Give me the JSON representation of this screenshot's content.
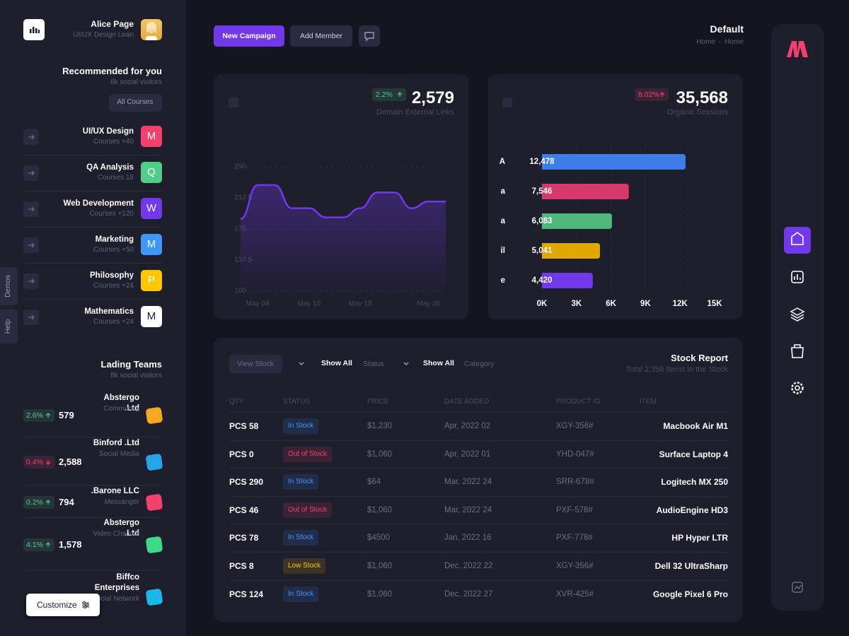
{
  "sidebar": {
    "name": "Alice Page",
    "role": "UI/UX Design Lean",
    "recommended_title": "Recommended for you",
    "recommended_subtitle": "8k social visitors",
    "all_courses": "All Courses",
    "courses": [
      {
        "title": "UI/UX Design",
        "meta": "Courses +40",
        "letter": "M",
        "color": "#f1416c"
      },
      {
        "title": "QA Analysis",
        "meta": "Courses 18",
        "letter": "Q",
        "color": "#50cd89"
      },
      {
        "title": "Web Development",
        "meta": "Courses +120",
        "letter": "W",
        "color": "#7239ea"
      },
      {
        "title": "Marketing",
        "meta": ".Courses +50",
        "letter": "M",
        "color": "#3e97ff"
      },
      {
        "title": "Philosophy",
        "meta": "Courses +24",
        "letter": "P",
        "color": "#ffc700"
      },
      {
        "title": "Mathematics",
        "meta": "Courses +24",
        "letter": "M",
        "color": "#ffffff"
      }
    ],
    "tabs": [
      "Demos",
      "Help"
    ],
    "teams_title": "Lading Teams",
    "teams_subtitle": "8k social visitors",
    "teams": [
      {
        "change": "2.6%",
        "value": "579",
        "name": "Abstergo .Ltd",
        "type": "Community",
        "color": "#50cd89",
        "icon": "#f6a821"
      },
      {
        "change": "0.4%",
        "value": "2,588",
        "name": "Binford .Ltd",
        "type": "Social Media",
        "color": "#f1416c",
        "icon": "#27a3e8"
      },
      {
        "change": "0.2%",
        "value": "794",
        "name": ".Barone LLC",
        "type": "Messanger",
        "color": "#50cd89",
        "icon": "#f1416c"
      },
      {
        "change": "4.1%",
        "value": "1,578",
        "name": "Abstergo .Ltd",
        "type": "Video Channel",
        "color": "#50cd89",
        "icon": "#3fd98a"
      },
      {
        "name": "Biffco Enterprises",
        "type": "Social Network",
        "icon": "#1ab7ea"
      }
    ],
    "customize": "Customize"
  },
  "header": {
    "new_campaign": "New Campaign",
    "add_member": "Add Member",
    "title": "Default",
    "breadcrumb": [
      "Home",
      "-",
      "Home"
    ]
  },
  "line_card": {
    "badge": "2.2%",
    "value": "2,579",
    "label": "Domain External Links",
    "chart_data": {
      "type": "line",
      "categories": [
        null,
        "May 04",
        null,
        null,
        "May 10",
        null,
        null,
        "May 18",
        null,
        null,
        null,
        "May 26",
        null
      ],
      "values": [
        187,
        228,
        228,
        200,
        200,
        189,
        189,
        200,
        219,
        219,
        200,
        208,
        208
      ],
      "color": "#7239ea",
      "ylim": [
        100,
        250
      ],
      "yticks": [
        100,
        137.5,
        175,
        212.5,
        250
      ],
      "grid": true
    }
  },
  "bar_card": {
    "badge": "8.02%",
    "value": "35,568",
    "label": "Organic Sessions",
    "chart_data": {
      "type": "bar",
      "orientation": "horizontal",
      "categories": [
        "A",
        "a",
        "a",
        "il",
        "e"
      ],
      "values": [
        12478,
        7546,
        6083,
        5041,
        4420
      ],
      "value_labels": [
        "12,478",
        "7,546",
        "6,083",
        "5,041",
        "4,420"
      ],
      "colors": [
        "#3e7ee8",
        "#d63a6a",
        "#4fb87b",
        "#e0a800",
        "#7239ea"
      ],
      "xlim": [
        0,
        15000
      ],
      "xticks": [
        {
          "value": 0,
          "label": "0K"
        },
        {
          "value": 3000,
          "label": "3K"
        },
        {
          "value": 6000,
          "label": "6K"
        },
        {
          "value": 9000,
          "label": "9K"
        },
        {
          "value": 12000,
          "label": "12K"
        },
        {
          "value": 15000,
          "label": "15K"
        }
      ],
      "grid": true
    }
  },
  "stock": {
    "view_stock": "View Stock",
    "filters": [
      {
        "label": "Show All",
        "placeholder": "Status"
      },
      {
        "label": "Show All",
        "placeholder": "Category"
      }
    ],
    "title": "Stock Report",
    "subtitle": "Total 2,356 Items in the Stock",
    "columns": [
      "QTY",
      "STATUS",
      "PRICE",
      "DATE ADDED",
      "PRODUCT ID",
      "ITEM"
    ],
    "rows": [
      {
        "qty": "PCS 58",
        "status": "In Stock",
        "color": "#3e97ff",
        "price": "$1,230",
        "date": "Apr, 2022 02",
        "id": "XGY-356#",
        "item": "Macbook Air M1"
      },
      {
        "qty": "PCS 0",
        "status": "Out of Stock",
        "color": "#f1416c",
        "price": "$1,060",
        "date": "Apr, 2022 01",
        "id": "YHD-047#",
        "item": "Surface Laptop 4"
      },
      {
        "qty": "PCS 290",
        "status": "In Stock",
        "color": "#3e97ff",
        "price": "$64",
        "date": "Mar, 2022 24",
        "id": "SRR-678#",
        "item": "Logitech MX 250"
      },
      {
        "qty": "PCS 46",
        "status": "Out of Stock",
        "color": "#f1416c",
        "price": "$1,060",
        "date": "Mar, 2022 24",
        "id": "PXF-578#",
        "item": "AudioEngine HD3"
      },
      {
        "qty": "PCS 78",
        "status": "In Stock",
        "color": "#3e97ff",
        "price": "$4500",
        "date": "Jan, 2022 16",
        "id": "PXF-778#",
        "item": "HP Hyper LTR"
      },
      {
        "qty": "PCS 8",
        "status": "Low Stock",
        "color": "#ffc700",
        "price": "$1,060",
        "date": "Dec, 2022 22",
        "id": "XGY-356#",
        "item": "Dell 32 UltraSharp"
      },
      {
        "qty": "PCS 124",
        "status": "In Stock",
        "color": "#3e97ff",
        "price": "$1,060",
        "date": "Dec, 2022 27",
        "id": "XVR-425#",
        "item": "Google Pixel 6 Pro"
      }
    ]
  }
}
